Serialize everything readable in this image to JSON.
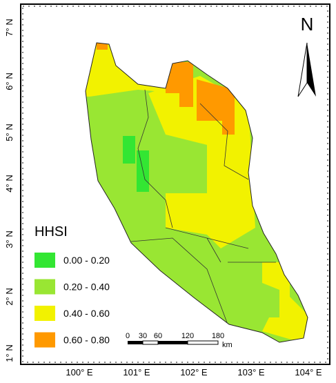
{
  "north_arrow": "N",
  "longitude_labels": [
    "100° E",
    "101° E",
    "102° E",
    "103° E",
    "104° E"
  ],
  "latitude_labels": [
    "7° N",
    "6° N",
    "5° N",
    "4° N",
    "3° N",
    "2° N",
    "1° N"
  ],
  "legend": {
    "title": "HHSI",
    "items": [
      {
        "label": "0.00 - 0.20",
        "color": "#33e633"
      },
      {
        "label": "0.20 - 0.40",
        "color": "#99e633"
      },
      {
        "label": "0.40 - 0.60",
        "color": "#f2f200"
      },
      {
        "label": "0.60 - 0.80",
        "color": "#ff9900"
      }
    ]
  },
  "scale_bar": {
    "labels": [
      "0",
      "30",
      "60",
      "120",
      "180"
    ],
    "unit": "km"
  }
}
